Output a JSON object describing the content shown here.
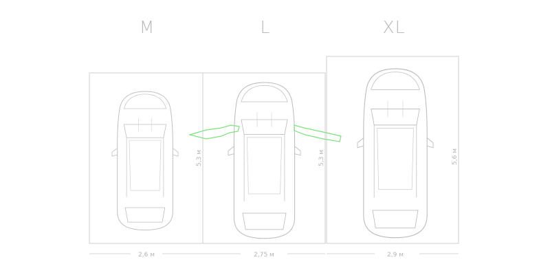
{
  "sizes": [
    {
      "label": "M",
      "length_label": "5,3 м",
      "width_label": "2,6 м"
    },
    {
      "label": "L",
      "length_label": "5,3 м",
      "width_label": "2,75 м"
    },
    {
      "label": "XL",
      "length_label": "5,6 м",
      "width_label": "2,9 м"
    }
  ],
  "colors": {
    "outline": "#c9c9c9",
    "car_outline": "#bdbdbd",
    "door_highlight": "#7fe07f",
    "text": "#b7b7b7"
  }
}
